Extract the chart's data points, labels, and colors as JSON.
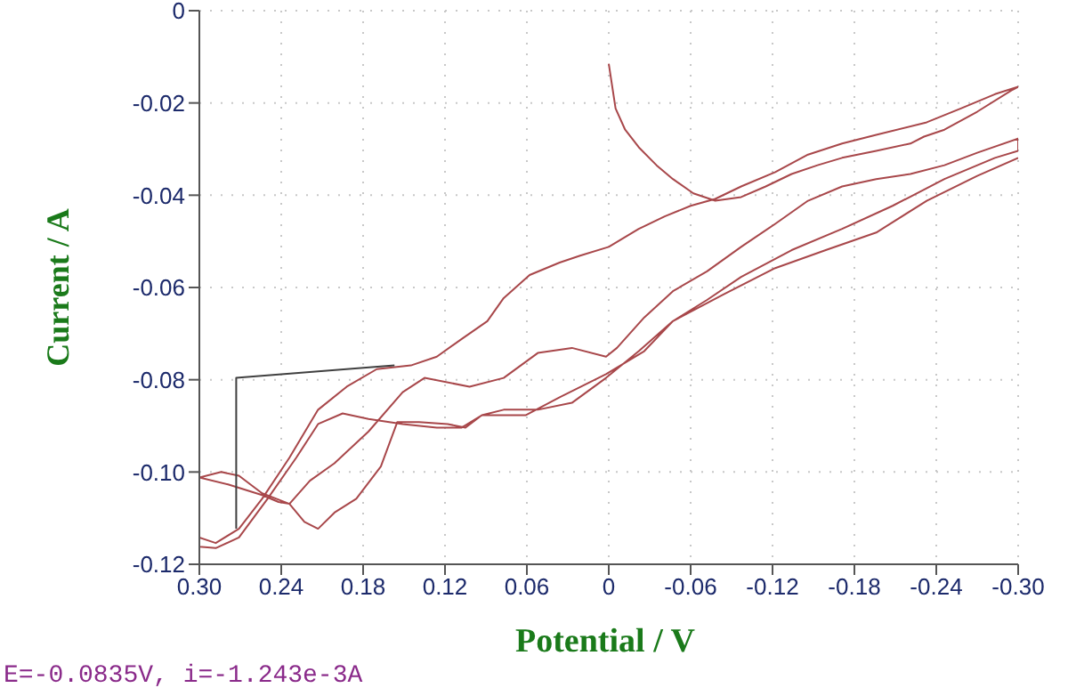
{
  "chart_data": {
    "type": "line",
    "xlabel": "Potential / V",
    "ylabel": "Current / A",
    "annotations": [
      "E=-0.0835V, i=-1.243e-3A"
    ],
    "xlim": [
      0.3,
      -0.3
    ],
    "xticks": [
      {
        "value": 0.3,
        "label": "0.30"
      },
      0.24,
      0.18,
      0.12,
      0.06,
      0,
      -0.06,
      -0.12,
      -0.18,
      -0.24,
      {
        "value": -0.3,
        "label": "-0.30"
      }
    ],
    "ylim": [
      -0.12,
      0
    ],
    "yticks": [
      0,
      -0.02,
      -0.04,
      -0.06,
      -0.08,
      {
        "value": -0.1,
        "label": "-0.10"
      },
      -0.12
    ],
    "grid": true,
    "line_style": "solid",
    "series": [
      {
        "color": "#a8474a",
        "x": [
          0.0,
          -0.005,
          -0.012,
          -0.022,
          -0.035,
          -0.047,
          -0.062,
          -0.078,
          -0.097,
          -0.115,
          -0.134,
          -0.153,
          -0.171,
          -0.196,
          -0.221,
          -0.231,
          -0.246,
          -0.27,
          -0.295,
          -0.3,
          -0.283,
          -0.258,
          -0.233,
          -0.196,
          -0.171,
          -0.146,
          -0.122,
          -0.097,
          -0.078,
          -0.06,
          -0.041,
          -0.022,
          0.0,
          0.021,
          0.036,
          0.058,
          0.077,
          0.089,
          0.108,
          0.126,
          0.145,
          0.17,
          0.192,
          0.213,
          0.234,
          0.254,
          0.271,
          0.288,
          0.3,
          0.3,
          0.288,
          0.271,
          0.25,
          0.229,
          0.213,
          0.195,
          0.176,
          0.151,
          0.126,
          0.108,
          0.093,
          0.077,
          0.052,
          0.027,
          0.002,
          -0.022,
          -0.047,
          -0.072,
          -0.097,
          -0.134,
          -0.171,
          -0.208,
          -0.246,
          -0.283,
          -0.3,
          -0.3,
          -0.27,
          -0.246,
          -0.221,
          -0.196,
          -0.171,
          -0.146,
          -0.122,
          -0.097,
          -0.072,
          -0.047,
          -0.026,
          -0.006,
          0.002,
          0.027,
          0.052,
          0.077,
          0.102,
          0.135,
          0.151,
          0.176,
          0.201,
          0.219,
          0.234,
          0.254,
          0.271,
          0.284,
          0.3,
          0.279,
          0.254,
          0.242,
          0.234,
          0.223,
          0.213,
          0.201,
          0.185,
          0.167,
          0.155,
          0.139,
          0.118,
          0.105,
          0.093,
          0.061,
          0.036,
          0.002,
          -0.026,
          -0.047,
          -0.084,
          -0.122,
          -0.159,
          -0.196,
          -0.233,
          -0.27,
          -0.3
        ],
        "values": [
          -0.0115,
          -0.0212,
          -0.0258,
          -0.0296,
          -0.0335,
          -0.0365,
          -0.0396,
          -0.0412,
          -0.0404,
          -0.0381,
          -0.0354,
          -0.0335,
          -0.0319,
          -0.0304,
          -0.0288,
          -0.0273,
          -0.0258,
          -0.0219,
          -0.0173,
          -0.0165,
          -0.0181,
          -0.0212,
          -0.0242,
          -0.0269,
          -0.0288,
          -0.0312,
          -0.035,
          -0.0381,
          -0.0408,
          -0.0423,
          -0.0446,
          -0.0473,
          -0.0512,
          -0.0531,
          -0.0546,
          -0.0573,
          -0.0623,
          -0.0673,
          -0.0712,
          -0.075,
          -0.0769,
          -0.0777,
          -0.0815,
          -0.0865,
          -0.0969,
          -0.1058,
          -0.1123,
          -0.1154,
          -0.1142,
          -0.1162,
          -0.1165,
          -0.1142,
          -0.1058,
          -0.0969,
          -0.0896,
          -0.0873,
          -0.0885,
          -0.0896,
          -0.0904,
          -0.0904,
          -0.0877,
          -0.0865,
          -0.0865,
          -0.085,
          -0.0796,
          -0.0738,
          -0.0673,
          -0.0627,
          -0.0577,
          -0.0519,
          -0.0473,
          -0.0423,
          -0.0365,
          -0.0319,
          -0.0304,
          -0.0277,
          -0.0308,
          -0.0335,
          -0.0354,
          -0.0365,
          -0.0381,
          -0.0412,
          -0.0462,
          -0.0512,
          -0.0565,
          -0.0608,
          -0.0665,
          -0.0731,
          -0.075,
          -0.0731,
          -0.0742,
          -0.0796,
          -0.0815,
          -0.0796,
          -0.0827,
          -0.0912,
          -0.0981,
          -0.1019,
          -0.1069,
          -0.1046,
          -0.1008,
          -0.1,
          -0.1012,
          -0.1027,
          -0.105,
          -0.1065,
          -0.1069,
          -0.1108,
          -0.1123,
          -0.1088,
          -0.1058,
          -0.0988,
          -0.0892,
          -0.0892,
          -0.0896,
          -0.0904,
          -0.0877,
          -0.0877,
          -0.0838,
          -0.0788,
          -0.0738,
          -0.0673,
          -0.0615,
          -0.0558,
          -0.0519,
          -0.0481,
          -0.0412,
          -0.0358,
          -0.0319
        ]
      },
      {
        "color": "#404040",
        "x": [
          0.273,
          0.273,
          0.157
        ],
        "values": [
          -0.1123,
          -0.0796,
          -0.0769
        ]
      }
    ]
  }
}
